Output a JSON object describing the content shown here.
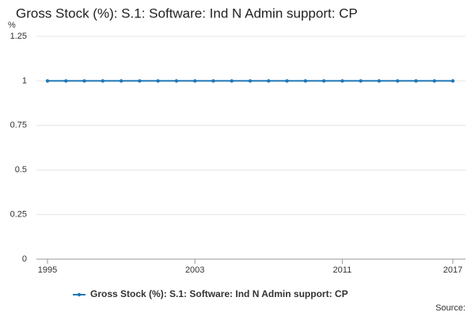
{
  "chart_data": {
    "type": "line",
    "title": "Gross Stock (%): S.1: Software: Ind N Admin support: CP",
    "y_label": "%",
    "source": "Source:",
    "x": [
      1995,
      1996,
      1997,
      1998,
      1999,
      2000,
      2001,
      2002,
      2003,
      2004,
      2005,
      2006,
      2007,
      2008,
      2009,
      2010,
      2011,
      2012,
      2013,
      2014,
      2015,
      2016,
      2017
    ],
    "series": [
      {
        "name": "Gross Stock (%): S.1: Software: Ind N Admin support: CP",
        "color": "#1f77b4",
        "values": [
          1,
          1,
          1,
          1,
          1,
          1,
          1,
          1,
          1,
          1,
          1,
          1,
          1,
          1,
          1,
          1,
          1,
          1,
          1,
          1,
          1,
          1,
          1
        ]
      }
    ],
    "xlim": [
      1995,
      2017
    ],
    "xticks": [
      1995,
      2003,
      2011,
      2017
    ],
    "ylim": [
      0,
      1.25
    ],
    "yticks": [
      0,
      0.25,
      0.5,
      0.75,
      1,
      1.25
    ],
    "grid": true
  }
}
